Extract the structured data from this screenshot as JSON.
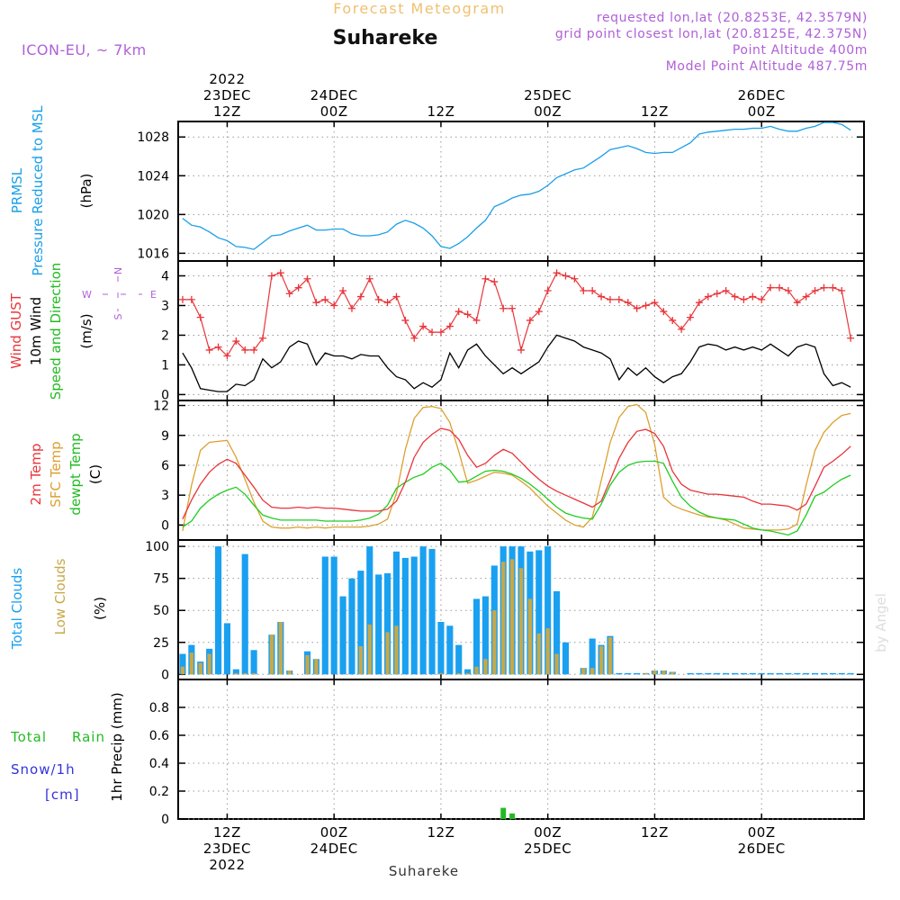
{
  "header": {
    "title": "Forecast Meteogram",
    "location": "Suhareke",
    "model": "ICON-EU, ~ 7km",
    "requested": "requested lon,lat (20.8253E, 42.3579N)",
    "grid_point": "grid point closest lon,lat (20.8125E, 42.375N)",
    "point_altitude": "Point Altitude 400m",
    "model_altitude": "Model Point Altitude 487.75m"
  },
  "top_axis": [
    {
      "hour": 12,
      "lines": [
        "2022",
        "23DEC",
        "12Z"
      ]
    },
    {
      "hour": 24,
      "lines": [
        "24DEC",
        "00Z"
      ]
    },
    {
      "hour": 36,
      "lines": [
        "12Z"
      ]
    },
    {
      "hour": 48,
      "lines": [
        "25DEC",
        "00Z"
      ]
    },
    {
      "hour": 60,
      "lines": [
        "12Z"
      ]
    },
    {
      "hour": 72,
      "lines": [
        "26DEC",
        "00Z"
      ]
    }
  ],
  "bottom_axis": [
    {
      "hour": 12,
      "lines": [
        "12Z",
        "23DEC",
        "2022"
      ]
    },
    {
      "hour": 24,
      "lines": [
        "00Z",
        "24DEC"
      ]
    },
    {
      "hour": 36,
      "lines": [
        "12Z"
      ]
    },
    {
      "hour": 48,
      "lines": [
        "00Z",
        "25DEC"
      ]
    },
    {
      "hour": 60,
      "lines": [
        "12Z"
      ]
    },
    {
      "hour": 72,
      "lines": [
        "00Z",
        "26DEC"
      ]
    }
  ],
  "footer_location": "Suhareke",
  "watermark": "by Angel",
  "colors": {
    "pressure": "#1a9fe8",
    "gust": "#e8353a",
    "wind": "#000000",
    "temp2m": "#e8353a",
    "sfc": "#dda030",
    "dewpt": "#22cc22",
    "total_clouds": "#1aa0f0",
    "low_clouds": "#c8a848",
    "rain": "#22bb22",
    "snow": "#3333dd",
    "label_purple": "#b060d8",
    "title_orange": "#f0c070"
  },
  "chart_data": [
    {
      "type": "line",
      "panel": "pressure",
      "ylabel_lines": [
        "PRMSL",
        "Pressure Reduced to MSL"
      ],
      "unit": "(hPa)",
      "ylim": [
        1015.2,
        1029.6
      ],
      "yticks": [
        1016,
        1020,
        1024,
        1028
      ],
      "x_hours": [
        7,
        8,
        9,
        10,
        11,
        12,
        13,
        14,
        15,
        16,
        17,
        18,
        19,
        20,
        21,
        22,
        23,
        24,
        25,
        26,
        27,
        28,
        29,
        30,
        31,
        32,
        33,
        34,
        35,
        36,
        37,
        38,
        39,
        40,
        41,
        42,
        43,
        44,
        45,
        46,
        47,
        48,
        49,
        50,
        51,
        52,
        53,
        54,
        55,
        56,
        57,
        58,
        59,
        60,
        61,
        62,
        63,
        64,
        65,
        66,
        67,
        68,
        69,
        70,
        71,
        72,
        73,
        74,
        75,
        76,
        77,
        78,
        79,
        80,
        81,
        82
      ],
      "series": [
        {
          "name": "PRMSL",
          "values": [
            1019.6,
            1018.9,
            1018.7,
            1018.2,
            1017.6,
            1017.3,
            1016.7,
            1016.6,
            1016.4,
            1017.1,
            1017.8,
            1017.9,
            1018.3,
            1018.6,
            1018.9,
            1018.4,
            1018.4,
            1018.5,
            1018.5,
            1018.0,
            1017.8,
            1017.8,
            1017.9,
            1018.2,
            1019.0,
            1019.4,
            1019.1,
            1018.6,
            1017.8,
            1016.7,
            1016.5,
            1017.0,
            1017.7,
            1018.6,
            1019.4,
            1020.8,
            1021.2,
            1021.7,
            1022.0,
            1022.1,
            1022.4,
            1023.0,
            1023.8,
            1024.2,
            1024.6,
            1024.8,
            1025.4,
            1026.0,
            1026.7,
            1026.9,
            1027.1,
            1026.8,
            1026.4,
            1026.3,
            1026.4,
            1026.4,
            1026.9,
            1027.4,
            1028.3,
            1028.5,
            1028.6,
            1028.7,
            1028.8,
            1028.8,
            1028.9,
            1028.9,
            1029.1,
            1028.8,
            1028.6,
            1028.6,
            1028.9,
            1029.1,
            1029.5,
            1029.5,
            1029.3,
            1028.7
          ]
        }
      ]
    },
    {
      "type": "line",
      "panel": "wind",
      "ylabel_lines": [
        "Wind GUST",
        "10m Wind",
        "Speed and Direction"
      ],
      "unit": "(m/s)",
      "compass": [
        "W",
        "E",
        "N",
        "S"
      ],
      "ylim": [
        -0.2,
        4.5
      ],
      "yticks": [
        0,
        1,
        2,
        3,
        4
      ],
      "x_hours": [
        7,
        8,
        9,
        10,
        11,
        12,
        13,
        14,
        15,
        16,
        17,
        18,
        19,
        20,
        21,
        22,
        23,
        24,
        25,
        26,
        27,
        28,
        29,
        30,
        31,
        32,
        33,
        34,
        35,
        36,
        37,
        38,
        39,
        40,
        41,
        42,
        43,
        44,
        45,
        46,
        47,
        48,
        49,
        50,
        51,
        52,
        53,
        54,
        55,
        56,
        57,
        58,
        59,
        60,
        61,
        62,
        63,
        64,
        65,
        66,
        67,
        68,
        69,
        70,
        71,
        72,
        73,
        74,
        75,
        76,
        77,
        78,
        79,
        80,
        81,
        82
      ],
      "series": [
        {
          "name": "Wind GUST",
          "values": [
            3.2,
            3.2,
            2.6,
            1.5,
            1.6,
            1.3,
            1.8,
            1.5,
            1.5,
            1.9,
            4.0,
            4.1,
            3.4,
            3.6,
            3.9,
            3.1,
            3.2,
            3.0,
            3.5,
            2.9,
            3.3,
            3.9,
            3.2,
            3.1,
            3.3,
            2.5,
            1.9,
            2.3,
            2.1,
            2.1,
            2.3,
            2.8,
            2.7,
            2.5,
            3.9,
            3.8,
            2.9,
            2.9,
            1.5,
            2.5,
            2.8,
            3.5,
            4.1,
            4.0,
            3.9,
            3.5,
            3.5,
            3.3,
            3.2,
            3.2,
            3.1,
            2.9,
            3.0,
            3.1,
            2.8,
            2.5,
            2.2,
            2.6,
            3.1,
            3.3,
            3.4,
            3.5,
            3.3,
            3.2,
            3.3,
            3.2,
            3.6,
            3.6,
            3.5,
            3.1,
            3.3,
            3.5,
            3.6,
            3.6,
            3.5,
            1.9
          ]
        },
        {
          "name": "10m Wind",
          "values": [
            1.4,
            0.9,
            0.2,
            0.15,
            0.1,
            0.1,
            0.35,
            0.3,
            0.5,
            1.2,
            0.9,
            1.1,
            1.6,
            1.8,
            1.7,
            1.0,
            1.4,
            1.3,
            1.3,
            1.2,
            1.35,
            1.3,
            1.3,
            0.9,
            0.6,
            0.5,
            0.2,
            0.4,
            0.25,
            0.5,
            1.4,
            0.9,
            1.5,
            1.7,
            1.3,
            1.0,
            0.7,
            0.9,
            0.7,
            0.9,
            1.1,
            1.6,
            2.0,
            1.9,
            1.8,
            1.6,
            1.5,
            1.4,
            1.2,
            0.5,
            0.9,
            0.65,
            0.9,
            0.6,
            0.4,
            0.6,
            0.7,
            1.1,
            1.6,
            1.7,
            1.65,
            1.5,
            1.6,
            1.5,
            1.6,
            1.5,
            1.7,
            1.5,
            1.3,
            1.6,
            1.7,
            1.6,
            0.7,
            0.3,
            0.4,
            0.25
          ]
        }
      ]
    },
    {
      "type": "line",
      "panel": "temperature",
      "ylabel_lines": [
        "2m Temp",
        "SFC Temp",
        "dewpt Temp"
      ],
      "unit": "(C)",
      "ylim": [
        -1.5,
        12.5
      ],
      "yticks": [
        0,
        3,
        6,
        9,
        12
      ],
      "x_hours": [
        7,
        8,
        9,
        10,
        11,
        12,
        13,
        14,
        15,
        16,
        17,
        18,
        19,
        20,
        21,
        22,
        23,
        24,
        25,
        26,
        27,
        28,
        29,
        30,
        31,
        32,
        33,
        34,
        35,
        36,
        37,
        38,
        39,
        40,
        41,
        42,
        43,
        44,
        45,
        46,
        47,
        48,
        49,
        50,
        51,
        52,
        53,
        54,
        55,
        56,
        57,
        58,
        59,
        60,
        61,
        62,
        63,
        64,
        65,
        66,
        67,
        68,
        69,
        70,
        71,
        72,
        73,
        74,
        75,
        76,
        77,
        78,
        79,
        80,
        81,
        82
      ],
      "series": [
        {
          "name": "2m Temp",
          "values": [
            0.6,
            2.5,
            4.1,
            5.3,
            6.1,
            6.6,
            6.2,
            5.0,
            3.8,
            2.5,
            1.8,
            1.7,
            1.7,
            1.8,
            1.7,
            1.8,
            1.7,
            1.7,
            1.6,
            1.5,
            1.4,
            1.4,
            1.4,
            1.6,
            2.4,
            4.3,
            6.8,
            8.3,
            9.1,
            9.7,
            9.5,
            8.6,
            7.0,
            5.8,
            6.2,
            7.0,
            7.6,
            7.2,
            6.3,
            5.4,
            4.6,
            3.9,
            3.4,
            3.0,
            2.6,
            2.2,
            1.8,
            2.4,
            4.5,
            6.7,
            8.3,
            9.4,
            9.6,
            9.2,
            7.9,
            5.4,
            4.1,
            3.5,
            3.3,
            3.1,
            3.1,
            3.0,
            2.9,
            2.8,
            2.4,
            2.1,
            2.1,
            2.0,
            1.9,
            1.5,
            2.1,
            3.9,
            5.8,
            6.4,
            7.1,
            7.9
          ]
        },
        {
          "name": "SFC Temp",
          "values": [
            -0.6,
            4.0,
            7.5,
            8.3,
            8.4,
            8.5,
            6.8,
            4.6,
            2.3,
            0.4,
            -0.2,
            -0.3,
            -0.3,
            -0.2,
            -0.3,
            -0.2,
            -0.3,
            -0.2,
            -0.2,
            -0.2,
            -0.2,
            -0.1,
            0.1,
            0.6,
            3.2,
            7.6,
            10.7,
            11.8,
            11.9,
            11.7,
            10.3,
            7.4,
            4.2,
            4.5,
            4.9,
            5.3,
            5.2,
            5.0,
            4.4,
            3.7,
            2.8,
            1.9,
            1.2,
            0.5,
            0.0,
            -0.2,
            0.8,
            4.5,
            8.3,
            10.8,
            11.9,
            12.1,
            11.3,
            8.1,
            2.8,
            2.0,
            1.6,
            1.3,
            1.0,
            0.8,
            0.7,
            0.5,
            0.1,
            -0.3,
            -0.4,
            -0.5,
            -0.5,
            -0.5,
            -0.4,
            0.1,
            4.0,
            7.5,
            9.3,
            10.3,
            11.0,
            11.2
          ]
        },
        {
          "name": "dewpt Temp",
          "values": [
            -0.2,
            0.4,
            1.7,
            2.5,
            3.1,
            3.5,
            3.8,
            3.1,
            2.0,
            1.0,
            0.7,
            0.5,
            0.5,
            0.5,
            0.5,
            0.5,
            0.4,
            0.4,
            0.4,
            0.4,
            0.5,
            0.7,
            1.1,
            2.0,
            3.7,
            4.3,
            4.8,
            5.1,
            5.8,
            6.2,
            5.5,
            4.3,
            4.4,
            4.9,
            5.4,
            5.5,
            5.4,
            5.1,
            4.7,
            4.1,
            3.4,
            2.6,
            1.8,
            1.2,
            0.9,
            0.7,
            0.6,
            2.1,
            4.0,
            5.3,
            6.0,
            6.3,
            6.4,
            6.4,
            6.2,
            4.4,
            2.8,
            1.9,
            1.3,
            0.9,
            0.7,
            0.6,
            0.5,
            0.1,
            -0.3,
            -0.5,
            -0.6,
            -0.8,
            -1.0,
            -0.6,
            1.0,
            2.9,
            3.3,
            4.0,
            4.6,
            5.0
          ]
        }
      ]
    },
    {
      "type": "bar",
      "panel": "clouds",
      "ylabel_lines": [
        "Total Clouds",
        "Low Clouds"
      ],
      "unit": "(%)",
      "ylim": [
        -4,
        105
      ],
      "yticks": [
        0,
        25,
        50,
        75,
        100
      ],
      "x_hours": [
        7,
        8,
        9,
        10,
        11,
        12,
        13,
        14,
        15,
        16,
        17,
        18,
        19,
        20,
        21,
        22,
        23,
        24,
        25,
        26,
        27,
        28,
        29,
        30,
        31,
        32,
        33,
        34,
        35,
        36,
        37,
        38,
        39,
        40,
        41,
        42,
        43,
        44,
        45,
        46,
        47,
        48,
        49,
        50,
        51,
        52,
        53,
        54,
        55,
        56,
        57,
        58,
        59,
        60,
        61,
        62,
        63,
        64,
        65,
        66,
        67,
        68,
        69,
        70,
        71,
        72,
        73,
        74,
        75,
        76,
        77,
        78,
        79,
        80,
        81,
        82
      ],
      "series": [
        {
          "name": "Total Clouds",
          "values": [
            16,
            23,
            10,
            20,
            100,
            40,
            4,
            94,
            19,
            0,
            31,
            41,
            3,
            0,
            18,
            12,
            92,
            92,
            61,
            75,
            81,
            100,
            78,
            79,
            96,
            91,
            92,
            100,
            98,
            41,
            38,
            23,
            4,
            59,
            61,
            85,
            100,
            100,
            100,
            96,
            97,
            100,
            65,
            25,
            0,
            5,
            28,
            23,
            30,
            1,
            1,
            1,
            1,
            3,
            3,
            2,
            0,
            1,
            1,
            1,
            1,
            1,
            1,
            1,
            1,
            1,
            1,
            1,
            1,
            1,
            1,
            1,
            1,
            1,
            1,
            1
          ]
        },
        {
          "name": "Low Clouds",
          "values": [
            6,
            17,
            9,
            16,
            0,
            0,
            1,
            1,
            1,
            0,
            31,
            41,
            3,
            0,
            15,
            12,
            0,
            0,
            0,
            0,
            22,
            39,
            0,
            33,
            38,
            0,
            0,
            0,
            0,
            1,
            0,
            1,
            1,
            6,
            12,
            50,
            88,
            90,
            83,
            59,
            32,
            36,
            16,
            0,
            0,
            5,
            5,
            22,
            29,
            0,
            0,
            0,
            1,
            3,
            3,
            2,
            0,
            0,
            0,
            0,
            0,
            0,
            0,
            0,
            0,
            0,
            0,
            0,
            0,
            0,
            0,
            0,
            0,
            0,
            0,
            0
          ]
        }
      ]
    },
    {
      "type": "bar",
      "panel": "precip",
      "ylabel_lines": [
        "Total",
        "Rain",
        "Snow/1h",
        "[cm]",
        "1hr Precip (mm)"
      ],
      "ylim": [
        0,
        1.0
      ],
      "yticks": [
        0,
        0.2,
        0.4,
        0.6,
        0.8
      ],
      "ytick_labels": [
        "0",
        "0.2",
        "0.4",
        "0.6",
        "0.8"
      ],
      "x_hours": [
        43,
        44
      ],
      "series": [
        {
          "name": "Rain",
          "values": [
            0.08,
            0.04
          ]
        }
      ]
    }
  ]
}
